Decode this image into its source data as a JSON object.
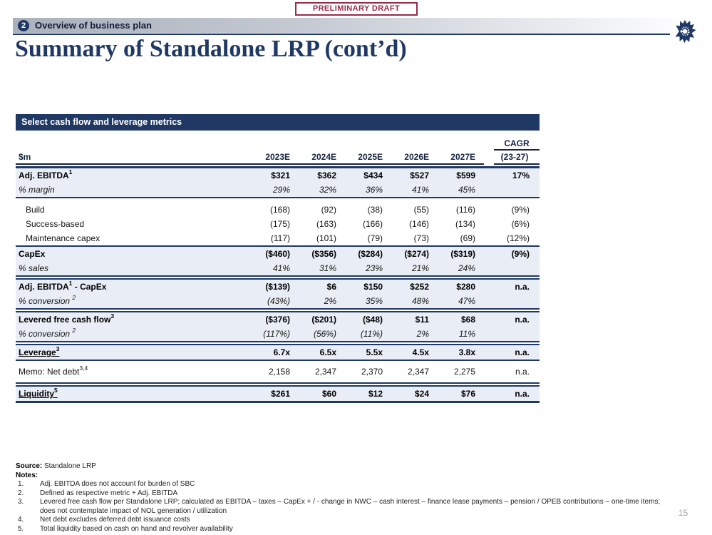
{
  "stamp": {
    "label": "PRELIMINARY DRAFT"
  },
  "header": {
    "badge": "2",
    "section_title": "Overview of business plan",
    "title": "Summary of Standalone LRP (cont’d)"
  },
  "icons": {
    "logo": "starburst-arrows-icon"
  },
  "colors": {
    "navy": "#1F3864",
    "maroon": "#9A2B4A",
    "shaded_row": "#e9edf5"
  },
  "table": {
    "title": "Select cash flow and leverage metrics",
    "unit_label": "$m",
    "years": [
      "2023E",
      "2024E",
      "2025E",
      "2026E",
      "2027E"
    ],
    "cagr_label": "CAGR",
    "cagr_sub": "(23-27)",
    "sections": [
      {
        "style": "band-first",
        "shaded": true,
        "rows": [
          {
            "label": [
              {
                "t": "Adj. EBITDA"
              },
              {
                "sup": "1"
              }
            ],
            "bold": true,
            "cells": [
              "$321",
              "$362",
              "$434",
              "$527",
              "$599",
              "17%"
            ]
          },
          {
            "label": [
              {
                "t": "% margin"
              }
            ],
            "italic": true,
            "cells": [
              "29%",
              "32%",
              "36%",
              "41%",
              "45%",
              ""
            ]
          }
        ]
      },
      {
        "style": "group",
        "shaded": false,
        "rows": [
          {
            "label": [
              {
                "t": "Build"
              }
            ],
            "indent": true,
            "cells": [
              "(168)",
              "(92)",
              "(38)",
              "(55)",
              "(116)",
              "(9%)"
            ]
          },
          {
            "label": [
              {
                "t": "Success-based"
              }
            ],
            "indent": true,
            "cells": [
              "(175)",
              "(163)",
              "(166)",
              "(146)",
              "(134)",
              "(6%)"
            ]
          },
          {
            "label": [
              {
                "t": "Maintenance capex"
              }
            ],
            "indent": true,
            "cells": [
              "(117)",
              "(101)",
              "(79)",
              "(73)",
              "(69)",
              "(12%)"
            ]
          }
        ]
      },
      {
        "style": "band",
        "shaded": true,
        "rows": [
          {
            "label": [
              {
                "t": "CapEx"
              }
            ],
            "bold": true,
            "cells": [
              "($460)",
              "($356)",
              "($284)",
              "($274)",
              "($319)",
              "(9%)"
            ]
          },
          {
            "label": [
              {
                "t": "% sales"
              }
            ],
            "italic": true,
            "cells": [
              "41%",
              "31%",
              "23%",
              "21%",
              "24%",
              ""
            ]
          }
        ]
      },
      {
        "style": "band-dbl",
        "shaded": true,
        "rows": [
          {
            "label": [
              {
                "t": "Adj. EBITDA"
              },
              {
                "sup": "1"
              },
              {
                "t": " - CapEx"
              }
            ],
            "bold": true,
            "cells": [
              "($139)",
              "$6",
              "$150",
              "$252",
              "$280",
              "n.a."
            ]
          },
          {
            "label": [
              {
                "t": "% conversion "
              },
              {
                "sup": "2"
              }
            ],
            "italic": true,
            "cells": [
              "(43%)",
              "2%",
              "35%",
              "48%",
              "47%",
              ""
            ]
          }
        ]
      },
      {
        "style": "band-dbl",
        "shaded": true,
        "rows": [
          {
            "label": [
              {
                "t": "Levered free cash flow"
              },
              {
                "sup": "3"
              }
            ],
            "bold": true,
            "cells": [
              "($376)",
              "($201)",
              "($48)",
              "$11",
              "$68",
              "n.a."
            ]
          },
          {
            "label": [
              {
                "t": "% conversion "
              },
              {
                "sup": "2"
              }
            ],
            "italic": true,
            "cells": [
              "(117%)",
              "(56%)",
              "(11%)",
              "2%",
              "11%",
              ""
            ]
          }
        ]
      },
      {
        "style": "band-dbl",
        "shaded": true,
        "rows": [
          {
            "label": [
              {
                "t": "Leverage"
              },
              {
                "sup": "3"
              }
            ],
            "bold": true,
            "underline": true,
            "cells": [
              "6.7x",
              "6.5x",
              "5.5x",
              "4.5x",
              "3.8x",
              "n.a."
            ]
          }
        ]
      },
      {
        "style": "memo",
        "shaded": false,
        "rows": [
          {
            "label": [
              {
                "t": "Memo: Net debt"
              },
              {
                "sup": "3,4"
              }
            ],
            "cells": [
              "2,158",
              "2,347",
              "2,370",
              "2,347",
              "2,275",
              "n.a."
            ]
          }
        ]
      },
      {
        "style": "last",
        "shaded": true,
        "rows": [
          {
            "label": [
              {
                "t": "Liquidity"
              },
              {
                "sup": "5"
              }
            ],
            "bold": true,
            "underline": true,
            "cells": [
              "$261",
              "$60",
              "$12",
              "$24",
              "$76",
              "n.a."
            ]
          }
        ]
      }
    ]
  },
  "footer": {
    "source_label": "Source:",
    "source_text": " Standalone LRP",
    "notes_label": "Notes:",
    "notes": [
      {
        "num": "1.",
        "text": "Adj. EBITDA does not account for burden of SBC"
      },
      {
        "num": "2.",
        "text": "Defined as respective metric + Adj. EBITDA"
      },
      {
        "num": "3.",
        "text": "Levered free cash flow per Standalone LRP; calculated as EBITDA – taxes – CapEx + / - change in NWC – cash interest – finance lease payments – pension / OPEB contributions – one-time items; does not contemplate impact of NOL generation / utilization"
      },
      {
        "num": "4.",
        "text": "Net debt excludes deferred debt issuance costs"
      },
      {
        "num": "5.",
        "text": "Total liquidity based on cash on hand and revolver availability"
      }
    ]
  },
  "page": {
    "number": "15"
  }
}
